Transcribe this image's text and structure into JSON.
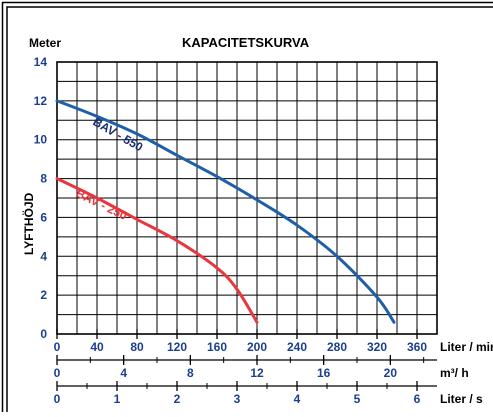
{
  "chart_data": {
    "type": "line",
    "title": "KAPACITETSKURVA",
    "y_unit_label": "Meter",
    "ylabel": "LYFTHÖJD",
    "ylim": [
      0,
      14
    ],
    "yticks": [
      0,
      2,
      4,
      6,
      8,
      10,
      12,
      14
    ],
    "xlim": [
      0,
      380
    ],
    "grid": true,
    "x_axes": [
      {
        "unit_label": "Liter / min",
        "ticks": [
          0,
          40,
          80,
          120,
          160,
          200,
          240,
          280,
          320,
          360
        ],
        "color": "#1a3f8f"
      },
      {
        "unit_label": "m³/ h",
        "ticks": [
          0,
          4,
          8,
          12,
          16,
          20
        ],
        "factor_lpm": 16.6667,
        "color": "#1a3f8f"
      },
      {
        "unit_label": "Liter / s",
        "ticks": [
          0,
          1,
          2,
          3,
          4,
          5,
          6
        ],
        "factor_lpm": 60,
        "color": "#1a3f8f"
      }
    ],
    "series": [
      {
        "name": "BAV - 550",
        "color": "#1f5fa8",
        "label_color": "#1a2f7a",
        "x": [
          0,
          40,
          80,
          120,
          160,
          200,
          240,
          280,
          320,
          337
        ],
        "y": [
          12.0,
          11.2,
          10.3,
          9.2,
          8.1,
          6.9,
          5.6,
          4.0,
          1.9,
          0.6
        ]
      },
      {
        "name": "BAV - 250",
        "color": "#e8383f",
        "label_color": "#e8383f",
        "x": [
          0,
          40,
          80,
          120,
          160,
          180,
          200
        ],
        "y": [
          8.0,
          7.0,
          5.9,
          4.8,
          3.4,
          2.3,
          0.6
        ]
      }
    ]
  }
}
